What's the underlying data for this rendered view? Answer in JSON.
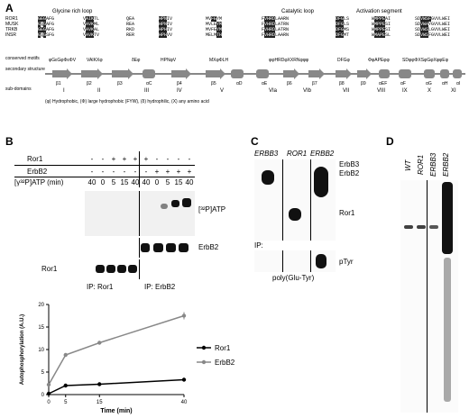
{
  "panels": {
    "a": {
      "letter": "A",
      "region_labels": [
        "Glycine rich loop",
        "Catalytic loop",
        "Activation segment"
      ],
      "proteins": [
        "ROR1",
        "MUSK",
        "TRKB",
        "INSR"
      ],
      "row_labels": [
        "conserved motifs",
        "secondary structure",
        "sub-domains"
      ],
      "motifs": [
        "φGεGφΦεΦV",
        "VAIKXφ",
        "δEφ",
        "HPNφV",
        "MXφΦLH",
        "φφHRDφXXRNφφφ",
        "DFGφ",
        "ΦφAPEφφ",
        "SDφφΦXSφGφXφφEφ"
      ],
      "structures": [
        "β1",
        "β2",
        "β3",
        "αC",
        "β4",
        "β5",
        "αD",
        "αE",
        "β6",
        "β7",
        "β8",
        "β9",
        "αEF",
        "αF",
        "αG",
        "αH",
        "αI"
      ],
      "subdomains": [
        "I",
        "II",
        "III",
        "IV",
        "V",
        "VIa",
        "VIb",
        "VII",
        "VIII",
        "IX",
        "X",
        "XI"
      ],
      "legend": "(φ) Hydrophobic, (Φ) large hydrophobic (FYW), (δ) hydrophilic, (X) any amino acid"
    },
    "b": {
      "letter": "B",
      "row_ror1": "Ror1",
      "row_erbb2": "ErbB2",
      "row_time": "[γ³²P]ATP (min)",
      "ror1_signs": [
        "-",
        "-",
        "+",
        "+",
        "+",
        "+",
        "-",
        "-",
        "-",
        "-"
      ],
      "erbb2_signs": [
        "-",
        "-",
        "-",
        "-",
        "-",
        "-",
        "+",
        "+",
        "+",
        "+"
      ],
      "times": [
        "40",
        "0",
        "5",
        "15",
        "40",
        "40",
        "0",
        "5",
        "15",
        "40"
      ],
      "blot_label_atp": "[³²P]ATP",
      "blot_label_erbb2": "ErbB2",
      "blot_label_ror1": "Ror1",
      "ip_left": "IP: Ror1",
      "ip_right": "IP: ErbB2",
      "chart_data": {
        "type": "line",
        "ylabel": "Autophosphorylation (A.U.)",
        "xlabel": "Time (min)",
        "x_ticks": [
          0,
          5,
          15,
          40
        ],
        "y_ticks": [
          0,
          5,
          10,
          15,
          20
        ],
        "xlim": [
          0,
          40
        ],
        "ylim": [
          0,
          20
        ],
        "series": [
          {
            "name": "Ror1",
            "color": "#000000",
            "x": [
              0,
              5,
              15,
              40
            ],
            "y": [
              0.2,
              2.0,
              2.3,
              3.3
            ]
          },
          {
            "name": "ErbB2",
            "color": "#888888",
            "x": [
              0,
              5,
              15,
              40
            ],
            "y": [
              2.2,
              8.8,
              11.5,
              17.5
            ]
          }
        ]
      }
    },
    "c": {
      "letter": "C",
      "lanes": [
        "ERBB3",
        "ROR1",
        "ERBB2"
      ],
      "label_erbb3": "ErbB3",
      "label_erbb2": "ErbB2",
      "label_ror1": "Ror1",
      "ip": "IP:",
      "ptyr": "pTyr",
      "substrate": "poly(Glu-Tyr)"
    },
    "d": {
      "letter": "D",
      "lanes": [
        "WT",
        "ROR1",
        "ERBB3",
        "ERBB2"
      ]
    }
  }
}
